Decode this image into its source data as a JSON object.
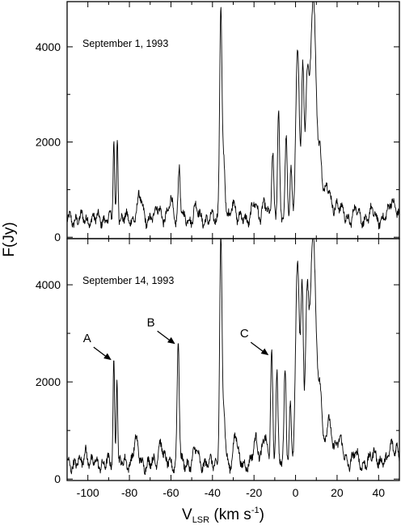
{
  "chart_data": {
    "type": "line",
    "xlabel_main": "V",
    "xlabel_sub": "LSR",
    "xlabel_unit_pre": " (km s",
    "xlabel_unit_sup": "-1",
    "xlabel_unit_post": ")",
    "ylabel": "F(Jy)",
    "xlim": [
      -110,
      50
    ],
    "x_ticks_major": [
      -100,
      -80,
      -60,
      -40,
      -20,
      0,
      20,
      40
    ],
    "x_ticks_minor_step": 10,
    "panels": [
      {
        "label": "September 1, 1993",
        "ylim": [
          -30,
          4950
        ],
        "y_ticks": [
          0,
          2000,
          4000
        ],
        "y_minor_step": 1000,
        "baseline": 380,
        "peaks": [
          {
            "x": -87.5,
            "y": 2050,
            "w": 0.35
          },
          {
            "x": -85.8,
            "y": 2180,
            "w": 0.35
          },
          {
            "x": -75,
            "y": 820,
            "w": 1.2
          },
          {
            "x": -66,
            "y": 650,
            "w": 1.2
          },
          {
            "x": -60,
            "y": 780,
            "w": 0.9
          },
          {
            "x": -56,
            "y": 1480,
            "w": 0.5
          },
          {
            "x": -48,
            "y": 620,
            "w": 1.0
          },
          {
            "x": -36,
            "y": 4950,
            "w": 0.55
          },
          {
            "x": -34.5,
            "y": 1500,
            "w": 0.6
          },
          {
            "x": -30,
            "y": 820,
            "w": 0.9
          },
          {
            "x": -20,
            "y": 700,
            "w": 1.2
          },
          {
            "x": -15,
            "y": 780,
            "w": 1.0
          },
          {
            "x": -11,
            "y": 1750,
            "w": 0.5
          },
          {
            "x": -8.2,
            "y": 2750,
            "w": 0.5
          },
          {
            "x": -4.5,
            "y": 2000,
            "w": 0.5
          },
          {
            "x": -2.2,
            "y": 1450,
            "w": 0.5
          },
          {
            "x": 1,
            "y": 3800,
            "w": 0.9
          },
          {
            "x": 3.5,
            "y": 3400,
            "w": 0.6
          },
          {
            "x": 5.5,
            "y": 2900,
            "w": 0.8
          },
          {
            "x": 8.5,
            "y": 4950,
            "w": 1.5
          },
          {
            "x": 12,
            "y": 1500,
            "w": 0.8
          },
          {
            "x": 15,
            "y": 1050,
            "w": 1.5
          },
          {
            "x": 20,
            "y": 700,
            "w": 2.0
          },
          {
            "x": 29,
            "y": 580,
            "w": 1.2
          },
          {
            "x": 37,
            "y": 520,
            "w": 1.2
          },
          {
            "x": 46,
            "y": 780,
            "w": 1.0
          },
          {
            "x": 48,
            "y": 650,
            "w": 0.8
          }
        ]
      },
      {
        "label": "September 14, 1993",
        "ylim": [
          -30,
          4950
        ],
        "y_ticks": [
          0,
          2000,
          4000
        ],
        "y_minor_step": 1000,
        "baseline": 320,
        "peaks": [
          {
            "x": -101,
            "y": 600,
            "w": 0.9
          },
          {
            "x": -87.5,
            "y": 2500,
            "w": 0.35
          },
          {
            "x": -86,
            "y": 2250,
            "w": 0.35
          },
          {
            "x": -77,
            "y": 760,
            "w": 1.2
          },
          {
            "x": -65,
            "y": 800,
            "w": 1.0
          },
          {
            "x": -56.5,
            "y": 2850,
            "w": 0.5
          },
          {
            "x": -48,
            "y": 600,
            "w": 1.0
          },
          {
            "x": -36,
            "y": 4950,
            "w": 0.55
          },
          {
            "x": -34.5,
            "y": 1400,
            "w": 0.6
          },
          {
            "x": -29,
            "y": 950,
            "w": 0.9
          },
          {
            "x": -19,
            "y": 780,
            "w": 1.2
          },
          {
            "x": -15,
            "y": 900,
            "w": 1.0
          },
          {
            "x": -11.5,
            "y": 2650,
            "w": 0.5
          },
          {
            "x": -9,
            "y": 2300,
            "w": 0.5
          },
          {
            "x": -5,
            "y": 2250,
            "w": 0.5
          },
          {
            "x": -2.5,
            "y": 1600,
            "w": 0.5
          },
          {
            "x": 1,
            "y": 4500,
            "w": 0.9
          },
          {
            "x": 3.2,
            "y": 3800,
            "w": 0.6
          },
          {
            "x": 5.5,
            "y": 3300,
            "w": 0.8
          },
          {
            "x": 8.5,
            "y": 4950,
            "w": 1.5
          },
          {
            "x": 12,
            "y": 1700,
            "w": 0.8
          },
          {
            "x": 16,
            "y": 1150,
            "w": 1.5
          },
          {
            "x": 21,
            "y": 760,
            "w": 2.0
          },
          {
            "x": 29,
            "y": 500,
            "w": 1.2
          },
          {
            "x": 38,
            "y": 580,
            "w": 1.2
          },
          {
            "x": 46,
            "y": 780,
            "w": 1.0
          },
          {
            "x": 48.5,
            "y": 600,
            "w": 0.8
          }
        ],
        "annotations": [
          {
            "text": "A",
            "target_x": -87.5,
            "target_y": 2450
          },
          {
            "text": "B",
            "target_x": -56.8,
            "target_y": 2780
          },
          {
            "text": "C",
            "target_x": -11.8,
            "target_y": 2550
          }
        ]
      }
    ]
  }
}
